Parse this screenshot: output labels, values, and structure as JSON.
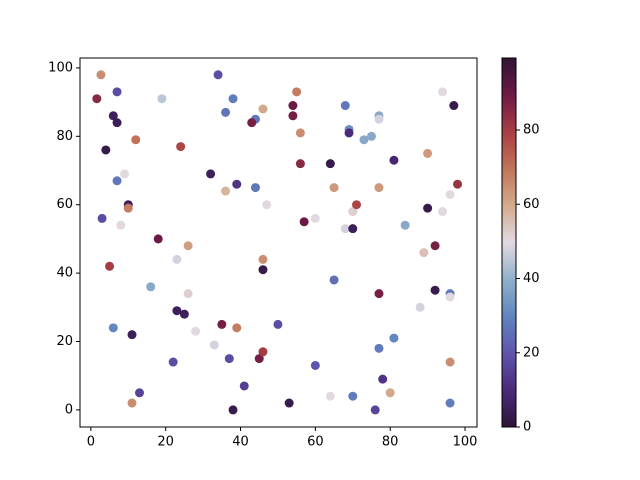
{
  "chart_data": {
    "type": "scatter",
    "x": [
      2.7,
      1.6,
      7,
      6,
      7,
      4,
      19,
      34,
      38,
      36,
      12,
      24,
      9,
      7,
      32,
      39,
      36,
      10,
      10,
      8,
      3,
      18,
      26,
      23,
      5,
      16,
      26,
      23,
      25,
      28,
      6,
      11,
      33,
      35,
      39,
      22,
      37,
      13,
      11,
      41,
      38,
      53,
      45,
      46,
      50,
      46,
      46,
      47,
      44,
      44,
      43,
      46,
      55,
      54,
      54,
      56,
      56,
      57,
      60,
      64,
      65,
      68,
      69,
      69,
      70,
      68,
      70,
      71,
      73,
      75,
      77,
      77,
      81,
      77,
      65,
      77,
      60,
      64,
      70,
      77,
      81,
      78,
      76,
      80,
      84,
      90,
      90,
      94,
      94,
      97,
      98,
      96,
      92,
      89,
      92,
      96,
      96,
      88,
      96,
      96
    ],
    "values": [
      98,
      91,
      93,
      86,
      84,
      76,
      91,
      98,
      91,
      87,
      79,
      77,
      69,
      67,
      69,
      66,
      64,
      60,
      59,
      54,
      56,
      50,
      48,
      44,
      42,
      36,
      34,
      29,
      28,
      23,
      24,
      22,
      19,
      25,
      24,
      14,
      15,
      5,
      2,
      7,
      0,
      2,
      15,
      17,
      25,
      44,
      41,
      60,
      65,
      85,
      84,
      88,
      93,
      89,
      86,
      81,
      72,
      55,
      56,
      72,
      65,
      89,
      82,
      81,
      58,
      53,
      53,
      60,
      79,
      80,
      86,
      85,
      73,
      65,
      38,
      34,
      13,
      4,
      4,
      18,
      21,
      9,
      0,
      5,
      54,
      75,
      59,
      58,
      93,
      89,
      66,
      63,
      48,
      46,
      35,
      34,
      33,
      30,
      14,
      2
    ],
    "color_values": [
      65,
      85,
      18,
      5,
      5,
      3,
      45,
      18,
      28,
      26,
      70,
      78,
      50,
      27,
      5,
      12,
      58,
      5,
      68,
      50,
      18,
      90,
      62,
      48,
      80,
      38,
      52,
      5,
      5,
      50,
      30,
      5,
      48,
      88,
      68,
      18,
      18,
      16,
      65,
      15,
      3,
      3,
      88,
      80,
      18,
      65,
      3,
      50,
      27,
      27,
      88,
      60,
      68,
      90,
      88,
      65,
      85,
      90,
      50,
      3,
      63,
      27,
      32,
      10,
      52,
      48,
      5,
      78,
      38,
      38,
      38,
      48,
      8,
      63,
      25,
      88,
      20,
      50,
      28,
      28,
      30,
      12,
      16,
      60,
      38,
      63,
      3,
      50,
      50,
      3,
      82,
      50,
      88,
      55,
      3,
      27,
      50,
      48,
      65,
      28
    ],
    "colormap": [
      "#2f1436",
      "#4b2a7b",
      "#5f54ad",
      "#6185c1",
      "#8fb0c9",
      "#e2d9e2",
      "#d3ab8e",
      "#c27458",
      "#a83e43",
      "#6d1a45",
      "#2f1436"
    ],
    "xlim": [
      -2.9,
      103.2
    ],
    "ylim": [
      -5,
      102.9
    ],
    "xticks": [
      0,
      20,
      40,
      60,
      80,
      100
    ],
    "yticks": [
      0,
      20,
      40,
      60,
      80,
      100
    ],
    "clim": [
      0,
      99.4
    ],
    "cticks": [
      0,
      20,
      40,
      60,
      80
    ]
  }
}
